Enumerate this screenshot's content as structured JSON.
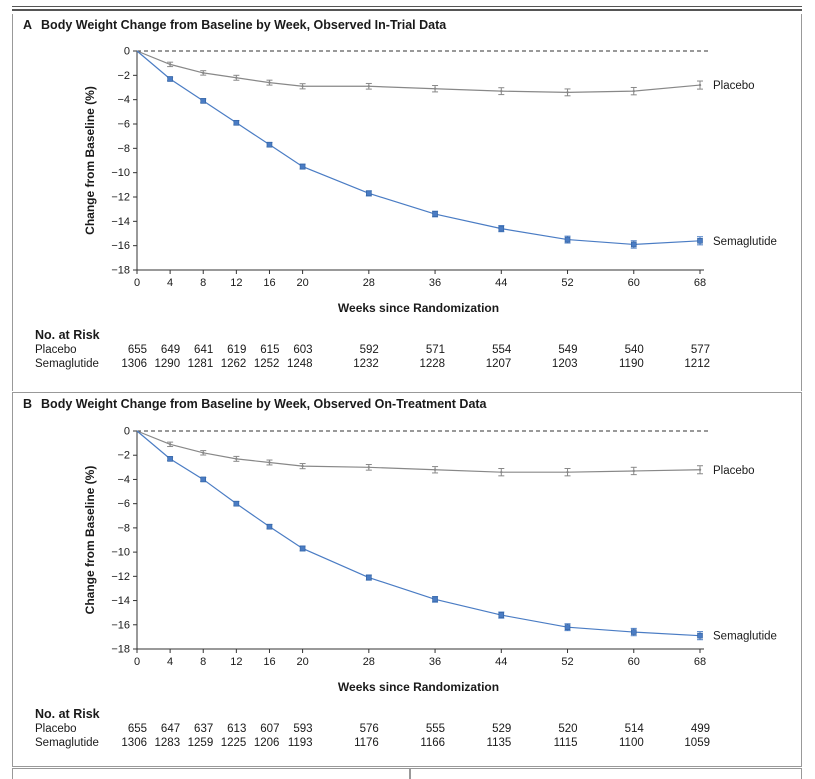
{
  "panels": [
    {
      "letter": "A",
      "title": "Body Weight Change from Baseline by Week, Observed In-Trial Data",
      "at_risk": {
        "title": "No. at Risk",
        "rows": [
          {
            "label": "Placebo",
            "values": [
              "655",
              "649",
              "641",
              "619",
              "615",
              "603",
              "592",
              "571",
              "554",
              "549",
              "540",
              "577"
            ]
          },
          {
            "label": "Semaglutide",
            "values": [
              "1306",
              "1290",
              "1281",
              "1262",
              "1252",
              "1248",
              "1232",
              "1228",
              "1207",
              "1203",
              "1190",
              "1212"
            ]
          }
        ]
      }
    },
    {
      "letter": "B",
      "title": "Body Weight Change from Baseline by Week, Observed On-Treatment Data",
      "at_risk": {
        "title": "No. at Risk",
        "rows": [
          {
            "label": "Placebo",
            "values": [
              "655",
              "647",
              "637",
              "613",
              "607",
              "593",
              "576",
              "555",
              "529",
              "520",
              "514",
              "499"
            ]
          },
          {
            "label": "Semaglutide",
            "values": [
              "1306",
              "1283",
              "1259",
              "1225",
              "1206",
              "1193",
              "1176",
              "1166",
              "1135",
              "1115",
              "1100",
              "1059"
            ]
          }
        ]
      }
    }
  ],
  "chart_data": [
    {
      "type": "line",
      "title": "Body Weight Change from Baseline by Week, Observed In-Trial Data",
      "xlabel": "Weeks since Randomization",
      "ylabel": "Change from Baseline (%)",
      "x": [
        0,
        4,
        8,
        12,
        16,
        20,
        28,
        36,
        44,
        52,
        60,
        68
      ],
      "xticks": [
        0,
        4,
        8,
        12,
        16,
        20,
        28,
        36,
        44,
        52,
        60,
        68
      ],
      "yticks": [
        0,
        -2,
        -4,
        -6,
        -8,
        -10,
        -12,
        -14,
        -16,
        -18
      ],
      "ytick_labels": [
        "0",
        "−2",
        "−4",
        "−6",
        "−8",
        "−10",
        "−12",
        "−14",
        "−16",
        "−18"
      ],
      "xlim": [
        0,
        68
      ],
      "ylim": [
        -18,
        0
      ],
      "reference_line": 0,
      "series": [
        {
          "name": "Placebo",
          "color": "#888888",
          "marker": "bar",
          "values": [
            0,
            -1.1,
            -1.8,
            -2.2,
            -2.6,
            -2.9,
            -2.9,
            -3.1,
            -3.3,
            -3.4,
            -3.3,
            -2.8
          ],
          "error": [
            0,
            0.1,
            0.1,
            0.12,
            0.12,
            0.13,
            0.15,
            0.18,
            0.2,
            0.2,
            0.22,
            0.25
          ]
        },
        {
          "name": "Semaglutide",
          "color": "#4a7cc4",
          "marker": "square",
          "values": [
            0,
            -2.3,
            -4.1,
            -5.9,
            -7.7,
            -9.5,
            -11.7,
            -13.4,
            -14.6,
            -15.5,
            -15.9,
            -15.6
          ],
          "error": [
            0,
            0.07,
            0.08,
            0.1,
            0.1,
            0.12,
            0.13,
            0.15,
            0.17,
            0.2,
            0.22,
            0.25
          ]
        }
      ]
    },
    {
      "type": "line",
      "title": "Body Weight Change from Baseline by Week, Observed On-Treatment Data",
      "xlabel": "Weeks since Randomization",
      "ylabel": "Change from Baseline (%)",
      "x": [
        0,
        4,
        8,
        12,
        16,
        20,
        28,
        36,
        44,
        52,
        60,
        68
      ],
      "xticks": [
        0,
        4,
        8,
        12,
        16,
        20,
        28,
        36,
        44,
        52,
        60,
        68
      ],
      "yticks": [
        0,
        -2,
        -4,
        -6,
        -8,
        -10,
        -12,
        -14,
        -16,
        -18
      ],
      "ytick_labels": [
        "0",
        "−2",
        "−4",
        "−6",
        "−8",
        "−10",
        "−12",
        "−14",
        "−16",
        "−18"
      ],
      "xlim": [
        0,
        68
      ],
      "ylim": [
        -18,
        0
      ],
      "reference_line": 0,
      "series": [
        {
          "name": "Placebo",
          "color": "#888888",
          "marker": "bar",
          "values": [
            0,
            -1.1,
            -1.8,
            -2.3,
            -2.6,
            -2.9,
            -3.0,
            -3.2,
            -3.4,
            -3.4,
            -3.3,
            -3.2
          ],
          "error": [
            0,
            0.1,
            0.1,
            0.12,
            0.12,
            0.13,
            0.15,
            0.18,
            0.22,
            0.22,
            0.22,
            0.25
          ]
        },
        {
          "name": "Semaglutide",
          "color": "#4a7cc4",
          "marker": "square",
          "values": [
            0,
            -2.3,
            -4.0,
            -6.0,
            -7.9,
            -9.7,
            -12.1,
            -13.9,
            -15.2,
            -16.2,
            -16.6,
            -16.9
          ],
          "error": [
            0,
            0.07,
            0.08,
            0.1,
            0.1,
            0.12,
            0.13,
            0.15,
            0.17,
            0.2,
            0.22,
            0.25
          ]
        }
      ]
    }
  ]
}
